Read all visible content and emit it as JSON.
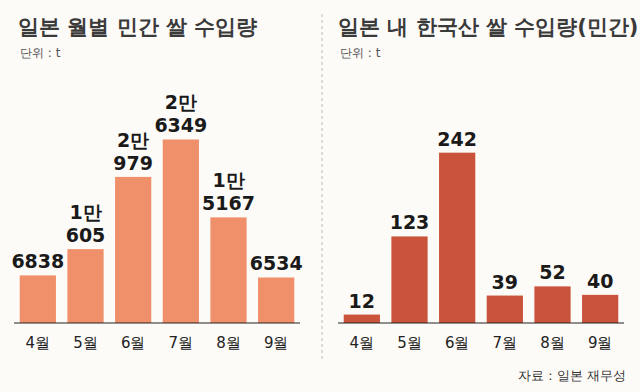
{
  "chart_data": [
    {
      "type": "bar",
      "title": "일본 월별 민간 쌀 수입량",
      "subtitle": "단위 : t",
      "categories": [
        "4월",
        "5월",
        "6월",
        "7월",
        "8월",
        "9월"
      ],
      "values": [
        6838,
        10605,
        20979,
        26349,
        15167,
        6534
      ],
      "value_labels": [
        "6838",
        "1만\n605",
        "2만\n979",
        "2만\n6349",
        "1만\n5167",
        "6534"
      ],
      "color": "#f0906a",
      "ylim": [
        0,
        28000
      ],
      "grid": false,
      "data_labels": true,
      "tick_labels": "x"
    },
    {
      "type": "bar",
      "title": "일본 내 한국산 쌀 수입량(민간)",
      "subtitle": "단위 : t",
      "categories": [
        "4월",
        "5월",
        "6월",
        "7월",
        "8월",
        "9월"
      ],
      "values": [
        12,
        123,
        242,
        39,
        52,
        40
      ],
      "color": "#c9533b",
      "ylim": [
        0,
        260
      ],
      "grid": false,
      "data_labels": true,
      "tick_labels": "x",
      "annotations": [
        "자료 : 일본 재무성"
      ]
    }
  ]
}
